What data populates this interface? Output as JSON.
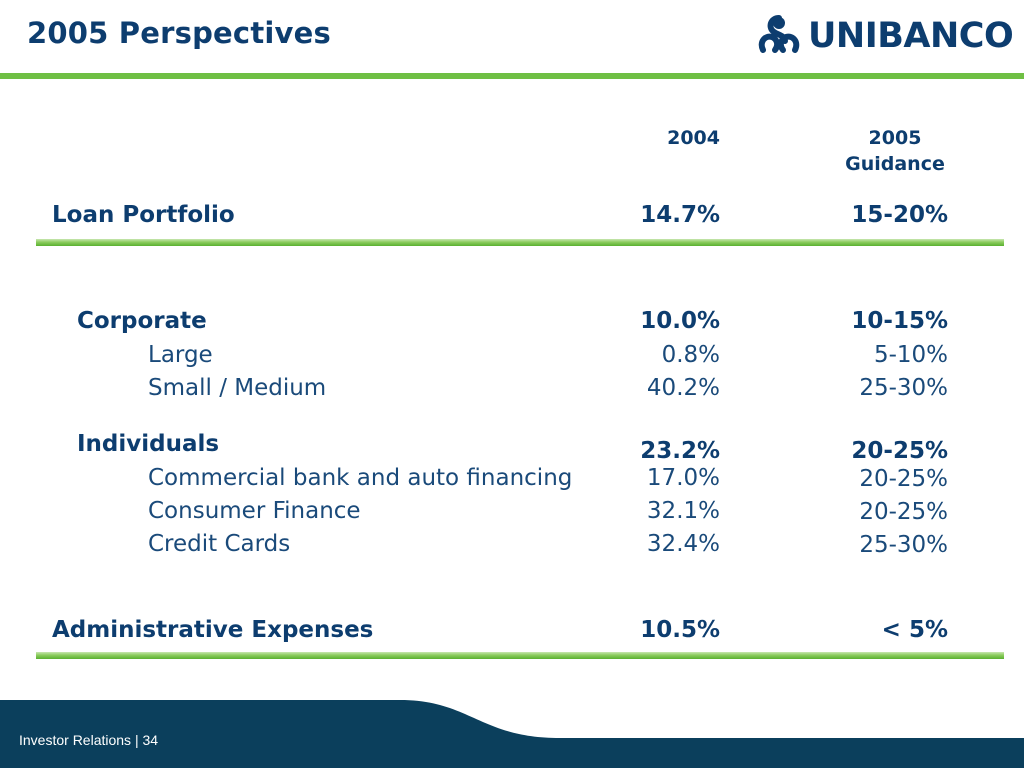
{
  "header": {
    "title": "2005 Perspectives",
    "logo_text": "UNIBANCO"
  },
  "table": {
    "columns": {
      "col_2004": "2004",
      "col_2005_line1": "2005",
      "col_2005_line2": "Guidance"
    },
    "rows": {
      "loan_portfolio": {
        "label": "Loan Portfolio",
        "v2004": "14.7%",
        "v2005": "15-20%"
      },
      "corporate": {
        "label": "Corporate",
        "v2004": "10.0%",
        "v2005": "10-15%"
      },
      "large": {
        "label": "Large",
        "v2004": "0.8%",
        "v2005": "5-10%"
      },
      "small_medium": {
        "label": "Small / Medium",
        "v2004": "40.2%",
        "v2005": "25-30%"
      },
      "individuals": {
        "label": "Individuals",
        "v2004": "23.2%",
        "v2005": "20-25%"
      },
      "commercial_auto": {
        "label": "Commercial bank and auto financing",
        "v2004": "17.0%",
        "v2005": "20-25%"
      },
      "consumer_finance": {
        "label": "Consumer Finance",
        "v2004": "32.1%",
        "v2005": "20-25%"
      },
      "credit_cards": {
        "label": "Credit Cards",
        "v2004": "32.4%",
        "v2005": "25-30%"
      },
      "admin_expenses": {
        "label": "Administrative Expenses",
        "v2004": "10.5%",
        "v2005": "< 5%"
      }
    }
  },
  "footer": {
    "text": "Investor Relations | 34"
  },
  "colors": {
    "navy": "#0d3d6f",
    "green": "#6fbf44",
    "footer_bg": "#0b3f5c"
  }
}
